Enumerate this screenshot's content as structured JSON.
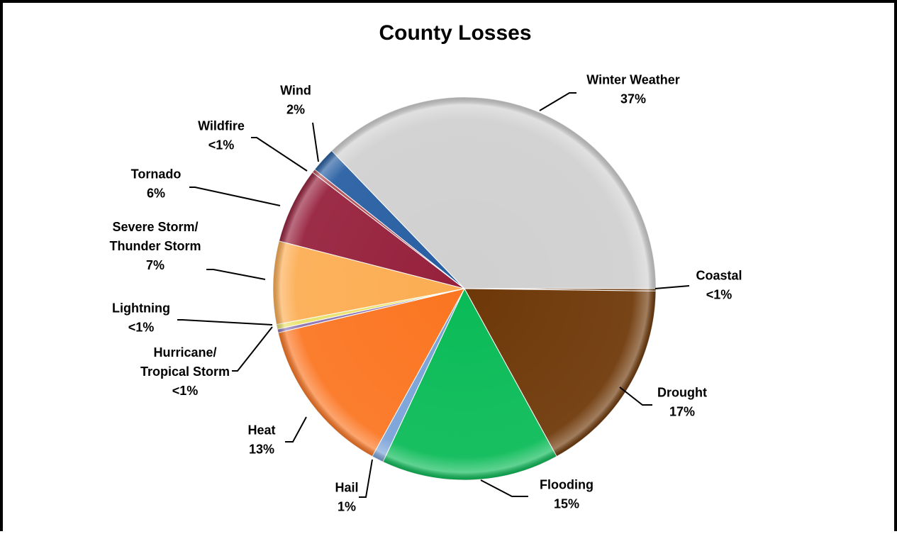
{
  "chart_data": {
    "type": "pie",
    "title": "County Losses",
    "start_angle_deg": 0,
    "direction": "clockwise",
    "slices": [
      {
        "name": "Coastal",
        "value": 0.2,
        "label_lines": [
          "Coastal"
        ],
        "pct_label": "<1%",
        "color": "#6b3a12"
      },
      {
        "name": "Drought",
        "value": 16.8,
        "label_lines": [
          "Drought"
        ],
        "pct_label": "17%",
        "color": "#6e3808"
      },
      {
        "name": "Flooding",
        "value": 15.0,
        "label_lines": [
          "Flooding"
        ],
        "pct_label": "15%",
        "color": "#0abb57"
      },
      {
        "name": "Hail",
        "value": 1.0,
        "label_lines": [
          "Hail"
        ],
        "pct_label": "1%",
        "color": "#7aa2d8"
      },
      {
        "name": "Heat",
        "value": 13.3,
        "label_lines": [
          "Heat"
        ],
        "pct_label": "13%",
        "color": "#fb7521"
      },
      {
        "name": "Hurricane/Tropical Storm",
        "value": 0.3,
        "label_lines": [
          "Hurricane/",
          "Tropical Storm"
        ],
        "pct_label": "<1%",
        "color": "#8c73b3"
      },
      {
        "name": "Lightning",
        "value": 0.4,
        "label_lines": [
          "Lightning"
        ],
        "pct_label": "<1%",
        "color": "#e9e26a"
      },
      {
        "name": "Severe Storm/Thunder Storm",
        "value": 7.0,
        "label_lines": [
          "Severe Storm/",
          "Thunder Storm"
        ],
        "pct_label": "7%",
        "color": "#fcad52"
      },
      {
        "name": "Tornado",
        "value": 6.4,
        "label_lines": [
          "Tornado"
        ],
        "pct_label": "6%",
        "color": "#96203c"
      },
      {
        "name": "Wildfire",
        "value": 0.3,
        "label_lines": [
          "Wildfire"
        ],
        "pct_label": "<1%",
        "color": "#b24f56"
      },
      {
        "name": "Wind",
        "value": 2.1,
        "label_lines": [
          "Wind"
        ],
        "pct_label": "2%",
        "color": "#275ea2"
      },
      {
        "name": "Winter Weather",
        "value": 37.2,
        "label_lines": [
          "Winter Weather"
        ],
        "pct_label": "37%",
        "color": "#d0d0d0"
      }
    ]
  }
}
